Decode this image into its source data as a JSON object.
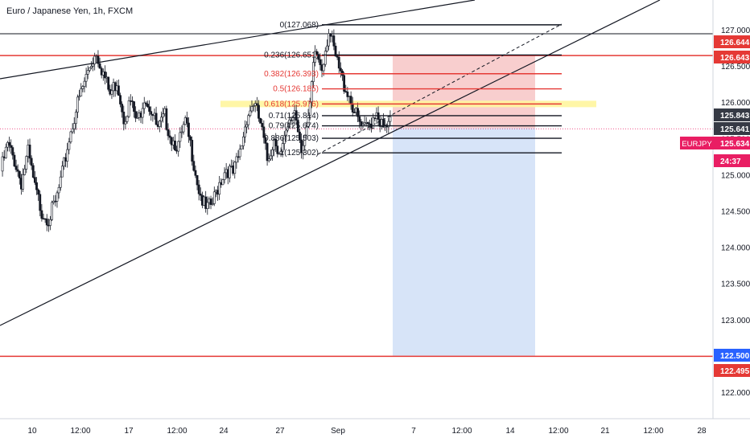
{
  "chart_data": {
    "type": "candlestick",
    "title": "Euro / Japanese Yen, 1h, FXCM",
    "symbol": "EURJPY",
    "y_ticks": [
      "127.000",
      "126.500",
      "126.000",
      "125.500",
      "125.000",
      "124.500",
      "124.000",
      "123.500",
      "123.000",
      "122.500",
      "122.000"
    ],
    "y_tick_values": [
      127.0,
      126.5,
      126.0,
      125.5,
      125.0,
      124.5,
      124.0,
      123.5,
      123.0,
      122.5,
      122.0
    ],
    "ylim": [
      121.55,
      127.45
    ],
    "x_ticks": [
      "10",
      "12:00",
      "17",
      "12:00",
      "24",
      "12:00",
      "27",
      "Sep",
      "7",
      "12:00",
      "14",
      "12:00",
      "21",
      "12:00",
      "28"
    ],
    "price_badges": [
      {
        "label": "126.644",
        "value": 126.644,
        "color": "#e53935"
      },
      {
        "label": "126.643",
        "value": 126.643,
        "color": "#e53935"
      },
      {
        "label": "125.843",
        "value": 125.843,
        "color": "#363a45"
      },
      {
        "label": "125.641",
        "value": 125.641,
        "color": "#363a45"
      },
      {
        "label": "125.634",
        "value": 125.634,
        "color": "#e91e63",
        "name": "EURJPY"
      },
      {
        "label": "24:37",
        "value": 125.34,
        "color": "#e91e63"
      },
      {
        "label": "122.500",
        "value": 122.5,
        "color": "#2962ff"
      },
      {
        "label": "122.495",
        "value": 122.495,
        "color": "#e53935"
      }
    ],
    "fib_levels": [
      {
        "label": "0(127.068)",
        "value": 127.068,
        "color": "#131722"
      },
      {
        "label": "0.236(126.651)",
        "value": 126.651,
        "color": "#131722"
      },
      {
        "label": "0.382(126.393)",
        "value": 126.393,
        "color": "#e53935"
      },
      {
        "label": "0.5(126.185)",
        "value": 126.185,
        "color": "#e53935"
      },
      {
        "label": "0.618(125.976)",
        "value": 125.976,
        "color": "#e53935"
      },
      {
        "label": "0.71(125.814)",
        "value": 125.814,
        "color": "#131722"
      },
      {
        "label": "0.79(125.674)",
        "value": 125.674,
        "color": "#131722"
      },
      {
        "label": "0.886(125.503)",
        "value": 125.503,
        "color": "#131722"
      },
      {
        "label": "1(125.302)",
        "value": 125.302,
        "color": "#131722"
      }
    ],
    "horizontal_lines": [
      {
        "value": 126.644,
        "color": "#e53935"
      },
      {
        "value": 122.495,
        "color": "#e53935"
      }
    ],
    "current_price": 125.634,
    "position_tool": {
      "entry": 125.641,
      "stop": 126.643,
      "target": 122.5
    },
    "price_series": [
      125.05,
      125.4,
      125.2,
      124.9,
      125.3,
      124.8,
      124.5,
      124.4,
      124.6,
      125.0,
      125.5,
      125.9,
      126.2,
      126.5,
      126.7,
      126.4,
      126.1,
      126.3,
      125.8,
      126.0,
      125.7,
      126.1,
      125.9,
      125.6,
      125.8,
      125.5,
      125.4,
      125.7,
      125.3,
      124.8,
      124.5,
      124.6,
      124.9,
      125.1,
      125.0,
      125.3,
      125.8,
      126.0,
      125.7,
      125.2,
      125.5,
      125.3,
      125.6,
      125.9,
      125.4,
      125.7,
      126.7,
      126.5,
      127.0,
      126.6,
      126.3,
      126.1,
      125.8,
      125.6,
      125.7,
      125.9,
      125.6,
      125.7
    ]
  }
}
